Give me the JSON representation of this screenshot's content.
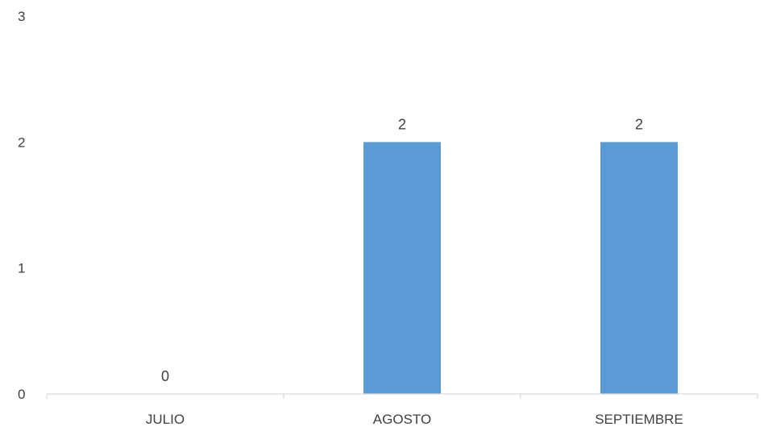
{
  "chart_data": {
    "type": "bar",
    "categories": [
      "JULIO",
      "AGOSTO",
      "SEPTIEMBRE"
    ],
    "values": [
      0,
      2,
      2
    ],
    "data_labels": [
      "0",
      "2",
      "2"
    ],
    "title": "",
    "xlabel": "",
    "ylabel": "",
    "ylim": [
      0,
      3
    ],
    "yticks": [
      0,
      1,
      2,
      3
    ],
    "ytick_labels": [
      "0",
      "1",
      "2",
      "3"
    ],
    "grid": false,
    "legend": "none",
    "bar_color": "#5B9BD5",
    "axis_color": "#D9D9D9",
    "text_color": "#404040"
  }
}
